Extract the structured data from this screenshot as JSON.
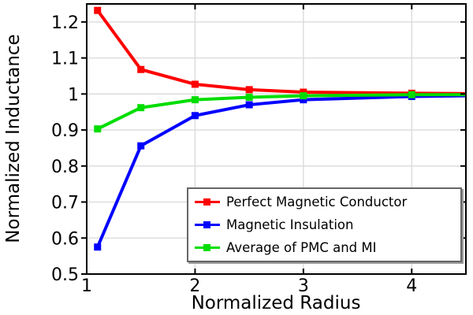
{
  "chart_data": {
    "type": "line",
    "title": "",
    "xlabel": "Normalized Radius",
    "ylabel": "Normalized Inductance",
    "xlim": [
      1,
      4.5
    ],
    "ylim": [
      0.5,
      1.25
    ],
    "grid": true,
    "legend_position": "lower right",
    "marker": "square",
    "marker_points": 6,
    "xticks": [
      {
        "v": 1,
        "label": "1"
      },
      {
        "v": 2,
        "label": "2"
      },
      {
        "v": 3,
        "label": "3"
      },
      {
        "v": 4,
        "label": "4"
      }
    ],
    "yticks": [
      {
        "v": 0.5,
        "label": "0.5"
      },
      {
        "v": 0.6,
        "label": "0.6"
      },
      {
        "v": 0.7,
        "label": "0.7"
      },
      {
        "v": 0.8,
        "label": "0.8"
      },
      {
        "v": 0.9,
        "label": "0.9"
      },
      {
        "v": 1.0,
        "label": "1"
      },
      {
        "v": 1.1,
        "label": "1.1"
      },
      {
        "v": 1.2,
        "label": "1.2"
      }
    ],
    "x": [
      1.1,
      1.5,
      2,
      2.5,
      3,
      4,
      4.5
    ],
    "series": [
      {
        "name": "Perfect Magnetic Conductor",
        "color": "#ff0000",
        "values": [
          1.232,
          1.068,
          1.027,
          1.012,
          1.005,
          1.002,
          1.001
        ]
      },
      {
        "name": "Magnetic Insulation",
        "color": "#0000ff",
        "values": [
          0.575,
          0.856,
          0.94,
          0.97,
          0.984,
          0.993,
          0.995
        ]
      },
      {
        "name": "Average of PMC and MI",
        "color": "#00dd00",
        "values": [
          0.903,
          0.962,
          0.984,
          0.991,
          0.995,
          0.998,
          0.998
        ]
      }
    ],
    "colors": {
      "background": "#ffffff",
      "frame": "#000000",
      "grid": "#d9d9d9",
      "tick_text": "#000000",
      "legend_border": "#666666",
      "legend_shadow": "#999999"
    }
  }
}
